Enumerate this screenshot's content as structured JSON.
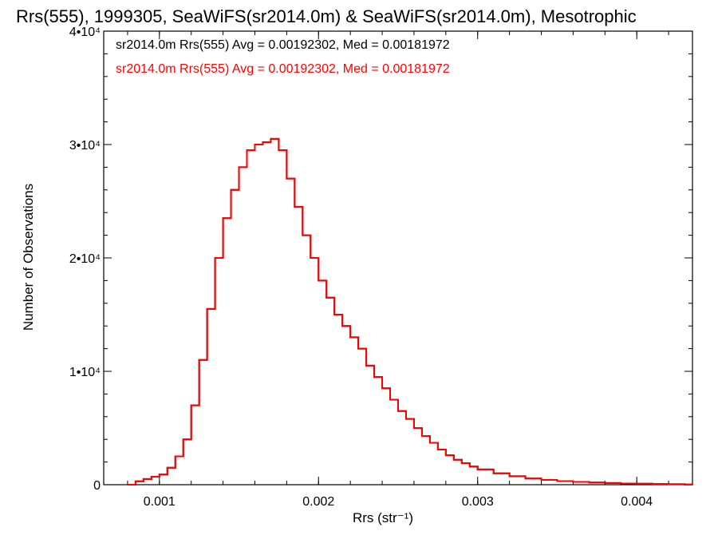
{
  "chart_data": {
    "type": "histogram",
    "title": "Rrs(555), 1999305, SeaWiFS(sr2014.0m) & SeaWiFS(sr2014.0m), Mesotrophic",
    "xlabel": "Rrs (str⁻¹)",
    "ylabel": "Number of Observations",
    "xlim": [
      0.00065,
      0.00435
    ],
    "ylim": [
      0,
      40000
    ],
    "x_ticks": [
      {
        "value": 0.001,
        "label": "0.001"
      },
      {
        "value": 0.002,
        "label": "0.002"
      },
      {
        "value": 0.003,
        "label": "0.003"
      },
      {
        "value": 0.004,
        "label": "0.004"
      }
    ],
    "y_ticks": [
      {
        "value": 0,
        "label": "0"
      },
      {
        "value": 10000,
        "label": "1•10⁴"
      },
      {
        "value": 20000,
        "label": "2•10⁴"
      },
      {
        "value": 30000,
        "label": "3•10⁴"
      },
      {
        "value": 40000,
        "label": "4•10⁴"
      }
    ],
    "annotations": [
      {
        "text": "sr2014.0m Rrs(555) Avg = 0.00192302, Med = 0.00181972",
        "color": "#000000"
      },
      {
        "text": "sr2014.0m Rrs(555) Avg = 0.00192302, Med = 0.00181972",
        "color": "#ff0000"
      }
    ],
    "series": [
      {
        "color": "#000000",
        "x": [
          0.0008,
          0.00085,
          0.0009,
          0.00095,
          0.001,
          0.00105,
          0.0011,
          0.00115,
          0.0012,
          0.00125,
          0.0013,
          0.00135,
          0.0014,
          0.00145,
          0.0015,
          0.00155,
          0.0016,
          0.00165,
          0.0017,
          0.00175,
          0.0018,
          0.00185,
          0.0019,
          0.00195,
          0.002,
          0.00205,
          0.0021,
          0.00215,
          0.0022,
          0.00225,
          0.0023,
          0.00235,
          0.0024,
          0.00245,
          0.0025,
          0.00255,
          0.0026,
          0.00265,
          0.0027,
          0.00275,
          0.0028,
          0.00285,
          0.0029,
          0.00295,
          0.003,
          0.0031,
          0.0032,
          0.0033,
          0.0034,
          0.0035,
          0.0036,
          0.0037,
          0.0038,
          0.0039,
          0.004,
          0.0041,
          0.0042,
          0.0043,
          0.00435
        ],
        "y": [
          0,
          300,
          500,
          700,
          900,
          1500,
          2500,
          4000,
          7000,
          11000,
          15500,
          20000,
          23500,
          26000,
          28000,
          29500,
          30000,
          30200,
          30500,
          29500,
          27000,
          24500,
          22000,
          20000,
          18000,
          16500,
          15000,
          14000,
          13000,
          12000,
          10500,
          9500,
          8500,
          7500,
          6500,
          5800,
          5000,
          4300,
          3700,
          3100,
          2600,
          2200,
          1900,
          1600,
          1350,
          1000,
          750,
          550,
          420,
          320,
          250,
          190,
          150,
          110,
          90,
          60,
          40,
          20,
          0
        ]
      },
      {
        "color": "#ff0000",
        "x": [
          0.0008,
          0.00085,
          0.0009,
          0.00095,
          0.001,
          0.00105,
          0.0011,
          0.00115,
          0.0012,
          0.00125,
          0.0013,
          0.00135,
          0.0014,
          0.00145,
          0.0015,
          0.00155,
          0.0016,
          0.00165,
          0.0017,
          0.00175,
          0.0018,
          0.00185,
          0.0019,
          0.00195,
          0.002,
          0.00205,
          0.0021,
          0.00215,
          0.0022,
          0.00225,
          0.0023,
          0.00235,
          0.0024,
          0.00245,
          0.0025,
          0.00255,
          0.0026,
          0.00265,
          0.0027,
          0.00275,
          0.0028,
          0.00285,
          0.0029,
          0.00295,
          0.003,
          0.0031,
          0.0032,
          0.0033,
          0.0034,
          0.0035,
          0.0036,
          0.0037,
          0.0038,
          0.0039,
          0.004,
          0.0041,
          0.0042,
          0.0043,
          0.00435
        ],
        "y": [
          0,
          300,
          500,
          700,
          900,
          1500,
          2500,
          4000,
          7000,
          11000,
          15500,
          20000,
          23500,
          26000,
          28000,
          29500,
          30000,
          30200,
          30500,
          29500,
          27000,
          24500,
          22000,
          20000,
          18000,
          16500,
          15000,
          14000,
          13000,
          12000,
          10500,
          9500,
          8500,
          7500,
          6500,
          5800,
          5000,
          4300,
          3700,
          3100,
          2600,
          2200,
          1900,
          1600,
          1350,
          1000,
          750,
          550,
          420,
          320,
          250,
          190,
          150,
          110,
          90,
          60,
          40,
          20,
          0
        ]
      }
    ]
  }
}
